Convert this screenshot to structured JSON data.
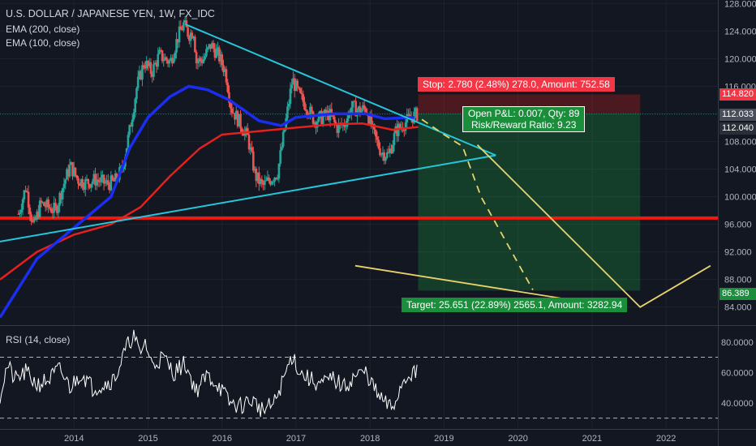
{
  "legend": {
    "title": "U.S. DOLLAR / JAPANESE YEN, 1W, FX_IDC",
    "ema200": "EMA (200, close)",
    "ema100": "EMA (100, close)",
    "rsi": "RSI (14, close)"
  },
  "price_badges": {
    "stop": "114.820",
    "last": "112.033",
    "close": "112.040",
    "target": "86.389"
  },
  "trade_boxes": {
    "stop": "Stop: 2.780 (2.48%) 278.0, Amount: 752.58",
    "pnl": "Open P&L: 0.007, Qty: 89",
    "rr": "Risk/Reward Ratio: 9.23",
    "target": "Target: 25.651 (22.89%) 2565.1, Amount: 3282.94"
  },
  "colors": {
    "background": "#131722",
    "ema200": "#e5201e",
    "ema100": "#1a2ef2",
    "trendline": "#26c6da",
    "support": "#f0190f",
    "projection": "#e8d36b",
    "stop_zone": "#e5201e",
    "target_zone": "#1b8e3c",
    "candle_up": "#26a69a",
    "candle_down": "#ef5350"
  },
  "chart_data": [
    {
      "type": "candlestick",
      "title": "U.S. DOLLAR / JAPANESE YEN, 1W, FX_IDC",
      "x_ticks": [
        "2014",
        "2015",
        "2016",
        "2017",
        "2018",
        "2019",
        "2020",
        "2021",
        "2022"
      ],
      "y_ticks": [
        "84.000",
        "88.000",
        "92.000",
        "96.000",
        "100.000",
        "104.000",
        "108.000",
        "112.000",
        "116.000",
        "120.000",
        "124.000",
        "128.000"
      ],
      "ylim": [
        81.5,
        128.5
      ],
      "close_path": [
        [
          "2013.25",
          97.5
        ],
        [
          "2013.35",
          101.5
        ],
        [
          "2013.45",
          95.5
        ],
        [
          "2013.55",
          99.0
        ],
        [
          "2013.65",
          98.5
        ],
        [
          "2013.75",
          98.0
        ],
        [
          "2013.85",
          101.5
        ],
        [
          "2013.95",
          104.5
        ],
        [
          "2014.05",
          102.5
        ],
        [
          "2014.15",
          102.0
        ],
        [
          "2014.30",
          102.5
        ],
        [
          "2014.45",
          101.8
        ],
        [
          "2014.55",
          102.2
        ],
        [
          "2014.65",
          104.0
        ],
        [
          "2014.75",
          109.5
        ],
        [
          "2014.85",
          116.0
        ],
        [
          "2014.95",
          119.5
        ],
        [
          "2015.05",
          118.0
        ],
        [
          "2015.15",
          120.5
        ],
        [
          "2015.30",
          119.5
        ],
        [
          "2015.40",
          123.0
        ],
        [
          "2015.48",
          125.0
        ],
        [
          "2015.55",
          123.5
        ],
        [
          "2015.62",
          124.0
        ],
        [
          "2015.65",
          119.5
        ],
        [
          "2015.75",
          120.0
        ],
        [
          "2015.85",
          122.0
        ],
        [
          "2015.95",
          120.5
        ],
        [
          "2016.05",
          118.0
        ],
        [
          "2016.12",
          113.0
        ],
        [
          "2016.25",
          110.5
        ],
        [
          "2016.35",
          108.5
        ],
        [
          "2016.45",
          103.0
        ],
        [
          "2016.55",
          101.5
        ],
        [
          "2016.65",
          102.5
        ],
        [
          "2016.75",
          103.5
        ],
        [
          "2016.85",
          110.0
        ],
        [
          "2016.95",
          117.0
        ],
        [
          "2017.05",
          114.5
        ],
        [
          "2017.15",
          113.0
        ],
        [
          "2017.25",
          111.0
        ],
        [
          "2017.35",
          111.5
        ],
        [
          "2017.45",
          112.0
        ],
        [
          "2017.55",
          110.0
        ],
        [
          "2017.65",
          110.5
        ],
        [
          "2017.75",
          113.0
        ],
        [
          "2017.85",
          112.5
        ],
        [
          "2017.95",
          112.8
        ],
        [
          "2018.05",
          109.0
        ],
        [
          "2018.15",
          106.5
        ],
        [
          "2018.25",
          106.0
        ],
        [
          "2018.35",
          109.5
        ],
        [
          "2018.45",
          110.5
        ],
        [
          "2018.55",
          111.5
        ],
        [
          "2018.65",
          112.0
        ]
      ],
      "ema100_path": [
        [
          "2013.0",
          82.5
        ],
        [
          "2013.5",
          91.0
        ],
        [
          "2014.0",
          95.5
        ],
        [
          "2014.5",
          100.0
        ],
        [
          "2014.75",
          107.0
        ],
        [
          "2015.0",
          111.5
        ],
        [
          "2015.3",
          114.5
        ],
        [
          "2015.55",
          116.0
        ],
        [
          "2015.8",
          115.5
        ],
        [
          "2016.1",
          114.0
        ],
        [
          "2016.5",
          111.0
        ],
        [
          "2016.8",
          110.3
        ],
        [
          "2017.0",
          111.5
        ],
        [
          "2017.5",
          112.0
        ],
        [
          "2017.95",
          112.0
        ],
        [
          "2018.2",
          111.3
        ],
        [
          "2018.6",
          111.5
        ]
      ],
      "ema200_path": [
        [
          "2013.0",
          88.0
        ],
        [
          "2013.5",
          92.0
        ],
        [
          "2014.0",
          94.5
        ],
        [
          "2014.5",
          96.0
        ],
        [
          "2014.9",
          98.5
        ],
        [
          "2015.3",
          103.0
        ],
        [
          "2015.7",
          107.0
        ],
        [
          "2016.0",
          109.0
        ],
        [
          "2016.5",
          109.5
        ],
        [
          "2017.0",
          110.0
        ],
        [
          "2017.5",
          110.5
        ],
        [
          "2017.9",
          110.6
        ],
        [
          "2018.3",
          109.7
        ],
        [
          "2018.65",
          110.1
        ]
      ],
      "trendlines": [
        {
          "name": "upper",
          "points": [
            [
              "2015.50",
              125.0
            ],
            [
              "2019.70",
              106.0
            ]
          ]
        },
        {
          "name": "lower",
          "points": [
            [
              "2013.0",
              93.5
            ],
            [
              "2019.70",
              106.0
            ]
          ]
        },
        {
          "name": "support",
          "points": [
            [
              "2013.0",
              96.9
            ],
            [
              "2022.70",
              96.9
            ]
          ]
        }
      ],
      "projections": [
        {
          "name": "dashed-path",
          "dashed": true,
          "points": [
            [
              "2018.70",
              111.2
            ],
            [
              "2019.00",
              109.0
            ],
            [
              "2019.25",
              107.3
            ],
            [
              "2019.50",
              100.0
            ],
            [
              "2020.20",
              86.5
            ]
          ]
        },
        {
          "name": "target-path",
          "dashed": false,
          "points": [
            [
              "2019.45",
              107.5
            ],
            [
              "2021.65",
              84.0
            ],
            [
              "2022.60",
              90.0
            ]
          ]
        },
        {
          "name": "lower-ray",
          "dashed": false,
          "points": [
            [
              "2017.80",
              90.0
            ],
            [
              "2021.45",
              83.8
            ]
          ]
        }
      ],
      "position": {
        "entry": 112.04,
        "stop": 114.82,
        "target": 86.389,
        "start": "2018.65",
        "end": "2021.65"
      },
      "x_range": [
        "2013.0",
        "2022.70"
      ]
    },
    {
      "type": "line",
      "title": "RSI (14, close)",
      "y_ticks": [
        "40.0000",
        "60.0000",
        "80.0000"
      ],
      "ylim": [
        25,
        90
      ],
      "reference_lines": [
        70,
        30
      ],
      "series": [
        {
          "values_path": [
            [
              "2013.00",
              45
            ],
            [
              "2013.10",
              65
            ],
            [
              "2013.20",
              55
            ],
            [
              "2013.35",
              60
            ],
            [
              "2013.50",
              52
            ],
            [
              "2013.65",
              55
            ],
            [
              "2013.80",
              62
            ],
            [
              "2013.95",
              50
            ],
            [
              "2014.10",
              60
            ],
            [
              "2014.25",
              50
            ],
            [
              "2014.40",
              52
            ],
            [
              "2014.55",
              56
            ],
            [
              "2014.70",
              75
            ],
            [
              "2014.80",
              85
            ],
            [
              "2014.90",
              70
            ],
            [
              "2014.95",
              82
            ],
            [
              "2015.05",
              65
            ],
            [
              "2015.20",
              70
            ],
            [
              "2015.35",
              60
            ],
            [
              "2015.50",
              66
            ],
            [
              "2015.65",
              48
            ],
            [
              "2015.80",
              58
            ],
            [
              "2015.95",
              52
            ],
            [
              "2016.10",
              40
            ],
            [
              "2016.25",
              38
            ],
            [
              "2016.40",
              42
            ],
            [
              "2016.55",
              35
            ],
            [
              "2016.70",
              39
            ],
            [
              "2016.85",
              58
            ],
            [
              "2016.95",
              72
            ],
            [
              "2017.05",
              60
            ],
            [
              "2017.20",
              55
            ],
            [
              "2017.35",
              52
            ],
            [
              "2017.50",
              56
            ],
            [
              "2017.65",
              50
            ],
            [
              "2017.80",
              58
            ],
            [
              "2017.95",
              60
            ],
            [
              "2018.10",
              45
            ],
            [
              "2018.20",
              40
            ],
            [
              "2018.30",
              36
            ],
            [
              "2018.45",
              55
            ],
            [
              "2018.55",
              60
            ],
            [
              "2018.65",
              59
            ]
          ]
        }
      ]
    }
  ]
}
